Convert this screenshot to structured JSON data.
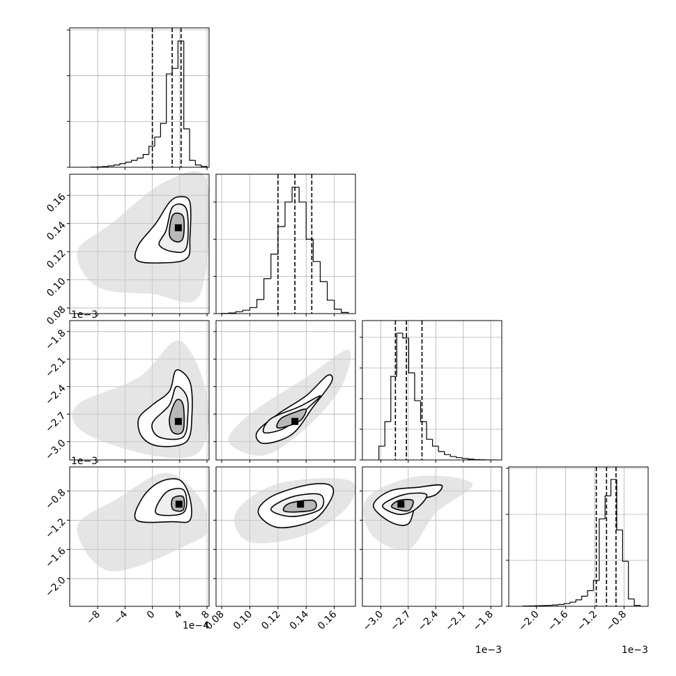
{
  "chart_data": {
    "type": "corner",
    "grid": true,
    "color": "#000000",
    "params": [
      {
        "xlim": [
          -12.1,
          8.3
        ],
        "xticks": [
          {
            "value": -8,
            "label": "−8"
          },
          {
            "value": -4,
            "label": "−4"
          },
          0,
          4,
          8
        ],
        "offset": "1e−4",
        "hist": {
          "bins": [
            -9,
            -8.15,
            -7.3,
            -6.45,
            -5.6,
            -4.75,
            -3.9,
            -3.05,
            -2.2,
            -1.35,
            -0.5,
            0.35,
            1.2,
            2.05,
            2.9,
            3.75,
            4.6,
            5.45,
            6.3,
            7.15,
            8.0
          ],
          "counts": [
            2,
            4,
            8,
            15,
            25,
            40,
            55,
            75,
            100,
            140,
            230,
            330,
            480,
            1020,
            1080,
            1379,
            420,
            75,
            25,
            8
          ],
          "ylim": [
            0,
            1523
          ],
          "yticks": [
            0,
            500,
            1000,
            1500
          ],
          "quantiles": [
            0,
            2.9,
            4.2
          ]
        }
      },
      {
        "xlim": [
          0.076,
          0.175
        ],
        "xticks": [
          0.08,
          {
            "value": 0.1,
            "label": "0.10"
          },
          0.12,
          0.14,
          0.16
        ],
        "hist": {
          "bins": [
            0.08,
            0.085,
            0.09,
            0.095,
            0.1,
            0.105,
            0.11,
            0.115,
            0.12,
            0.125,
            0.13,
            0.135,
            0.14,
            0.145,
            0.15,
            0.155,
            0.16,
            0.165,
            0.17
          ],
          "counts": [
            3,
            8,
            25,
            45,
            80,
            190,
            470,
            800,
            1170,
            1500,
            1700,
            1500,
            1000,
            700,
            430,
            180,
            60,
            15
          ],
          "ylim": [
            0,
            1874
          ],
          "yticks": [
            0,
            500,
            1000,
            1500
          ],
          "quantiles": [
            0.12,
            0.132,
            0.144
          ]
        }
      },
      {
        "xlim": [
          -3.2,
          -1.68
        ],
        "xticks": [
          {
            "value": -3.0,
            "label": "−3.0"
          },
          {
            "value": -2.7,
            "label": "−2.7"
          },
          {
            "value": -2.4,
            "label": "−2.4"
          },
          {
            "value": -2.1,
            "label": "−2.1"
          },
          {
            "value": -1.8,
            "label": "−1.8"
          }
        ],
        "offset": "1e−3",
        "hist": {
          "bins": [
            -3.02,
            -2.955,
            -2.89,
            -2.825,
            -2.76,
            -2.695,
            -2.63,
            -2.565,
            -2.5,
            -2.435,
            -2.37,
            -2.305,
            -2.24,
            -2.175,
            -2.11,
            -2.045,
            -1.98,
            -1.915,
            -1.85,
            -1.785,
            -1.72
          ],
          "counts": [
            180,
            500,
            1090,
            1654,
            1590,
            1136,
            773,
            500,
            270,
            180,
            110,
            70,
            45,
            30,
            20,
            10,
            5,
            3,
            0,
            0
          ],
          "ylim": [
            0,
            1818
          ],
          "yticks": [
            0,
            400,
            800,
            1200,
            1600
          ],
          "quantiles": [
            -2.84,
            -2.72,
            -2.55
          ]
        }
      },
      {
        "xlim": [
          -2.38,
          -0.47
        ],
        "xticks": [
          {
            "value": -2.0,
            "label": "−2.0"
          },
          {
            "value": -1.6,
            "label": "−1.6"
          },
          {
            "value": -1.2,
            "label": "−1.2"
          },
          {
            "value": -0.8,
            "label": "−0.8"
          }
        ],
        "offset": "1e−3",
        "hist": {
          "bins": [
            -2.18,
            -2.1,
            -2.02,
            -1.94,
            -1.86,
            -1.78,
            -1.7,
            -1.62,
            -1.54,
            -1.46,
            -1.38,
            -1.3,
            -1.22,
            -1.14,
            -1.06,
            -0.98,
            -0.9,
            -0.82,
            -0.74,
            -0.66,
            -0.58
          ],
          "counts": [
            3,
            4,
            6,
            8,
            10,
            14,
            20,
            30,
            45,
            70,
            110,
            170,
            280,
            950,
            1200,
            1379,
            830,
            490,
            80,
            10
          ],
          "ylim": [
            0,
            1515
          ],
          "yticks": [
            0,
            500,
            1000,
            1500
          ],
          "quantiles": [
            -1.18,
            -1.04,
            -0.91
          ]
        }
      }
    ],
    "pairs": [
      {
        "peak": {
          "x": 3.8,
          "y": 0.137
        },
        "cloud": {
          "x": [
            8,
            2,
            -6,
            -11,
            -8,
            0,
            7
          ],
          "y": [
            0.17,
            0.17,
            0.14,
            0.12,
            0.095,
            0.09,
            0.09
          ]
        },
        "contours": [
          {
            "x": [
              5.5,
              4,
              2.5,
              0.5,
              -2.0,
              -2.3,
              1,
              5,
              5.5
            ],
            "y": [
              0.155,
              0.159,
              0.155,
              0.14,
              0.125,
              0.114,
              0.112,
              0.115,
              0.13
            ]
          },
          {
            "x": [
              5,
              3,
              2,
              1,
              3,
              5
            ],
            "y": [
              0.15,
              0.152,
              0.135,
              0.125,
              0.12,
              0.123
            ]
          },
          {
            "x": [
              4.5,
              3,
              2.5,
              3.5,
              4.5
            ],
            "y": [
              0.145,
              0.146,
              0.132,
              0.127,
              0.13
            ]
          }
        ]
      },
      {
        "peak": {
          "x": 3.8,
          "y": -2.78
        },
        "cloud": {
          "x": [
            8,
            4,
            -2,
            -11,
            -10,
            0,
            7
          ],
          "y": [
            -2.5,
            -1.9,
            -2.3,
            -2.6,
            -2.9,
            -3.15,
            -3.1
          ]
        },
        "contours": [
          {
            "x": [
              5.5,
              3.5,
              2.5,
              0,
              -2,
              -1.5,
              1,
              5,
              5.8
            ],
            "y": [
              -2.35,
              -2.22,
              -2.45,
              -2.6,
              -2.75,
              -2.95,
              -3.05,
              -3.0,
              -2.7
            ]
          },
          {
            "x": [
              5,
              3.5,
              2.5,
              0,
              1,
              4.5,
              5.2
            ],
            "y": [
              -2.5,
              -2.4,
              -2.6,
              -2.8,
              -2.95,
              -2.95,
              -2.7
            ]
          },
          {
            "x": [
              4.5,
              3.5,
              2.5,
              3,
              4.5
            ],
            "y": [
              -2.6,
              -2.55,
              -2.75,
              -2.9,
              -2.88
            ]
          }
        ]
      },
      {
        "peak": {
          "x": 0.132,
          "y": -2.78
        },
        "cloud": {
          "x": [
            0.17,
            0.165,
            0.14,
            0.11,
            0.085,
            0.1,
            0.14
          ],
          "y": [
            -2.0,
            -2.4,
            -2.85,
            -3.15,
            -3.0,
            -2.7,
            -2.3
          ]
        },
        "contours": [
          {
            "x": [
              0.155,
              0.158,
              0.145,
              0.13,
              0.11,
              0.105,
              0.12,
              0.14
            ],
            "y": [
              -2.28,
              -2.35,
              -2.62,
              -2.92,
              -3.02,
              -2.9,
              -2.7,
              -2.5
            ]
          },
          {
            "x": [
              0.15,
              0.14,
              0.125,
              0.11,
              0.115,
              0.135
            ],
            "y": [
              -2.5,
              -2.65,
              -2.85,
              -2.9,
              -2.75,
              -2.62
            ]
          },
          {
            "x": [
              0.14,
              0.135,
              0.12,
              0.122,
              0.132
            ],
            "y": [
              -2.65,
              -2.78,
              -2.85,
              -2.75,
              -2.68
            ]
          }
        ]
      },
      {
        "peak": {
          "x": 3.9,
          "y": -0.98
        },
        "cloud": {
          "x": [
            7,
            2,
            -5,
            -11,
            -6,
            6,
            8
          ],
          "y": [
            -0.9,
            -0.55,
            -0.9,
            -1.3,
            -1.9,
            -1.5,
            -1.3
          ]
        },
        "contours": [
          {
            "x": [
              4,
              1,
              -1.5,
              -2.3,
              3,
              5.5,
              5.5
            ],
            "y": [
              -0.65,
              -0.68,
              -0.9,
              -1.2,
              -1.22,
              -1.2,
              -0.9
            ]
          },
          {
            "x": [
              4.5,
              2,
              0.5,
              4,
              5
            ],
            "y": [
              -0.78,
              -0.82,
              -1.1,
              -1.12,
              -1.0
            ]
          },
          {
            "x": [
              4.5,
              3,
              3,
              4.5
            ],
            "y": [
              -0.88,
              -0.9,
              -1.05,
              -1.06
            ]
          }
        ]
      },
      {
        "peak": {
          "x": 0.136,
          "y": -0.98
        },
        "cloud": {
          "x": [
            0.17,
            0.12,
            0.09,
            0.1,
            0.14,
            0.17
          ],
          "y": [
            -0.65,
            -0.7,
            -1.1,
            -1.5,
            -1.4,
            -1.0
          ]
        },
        "contours": [
          {
            "x": [
              0.157,
              0.14,
              0.115,
              0.106,
              0.12,
              0.145,
              0.158
            ],
            "y": [
              -0.72,
              -0.72,
              -0.88,
              -1.1,
              -1.3,
              -1.2,
              -0.9
            ]
          },
          {
            "x": [
              0.15,
              0.13,
              0.115,
              0.13,
              0.15
            ],
            "y": [
              -0.85,
              -0.88,
              -1.05,
              -1.15,
              -1.05
            ]
          },
          {
            "x": [
              0.145,
              0.128,
              0.125,
              0.145
            ],
            "y": [
              -0.93,
              -0.97,
              -1.08,
              -1.06
            ]
          }
        ]
      },
      {
        "peak": {
          "x": -2.78,
          "y": -0.98
        },
        "cloud": {
          "x": [
            -2.0,
            -2.6,
            -3.15,
            -3.1,
            -2.7,
            -2.4
          ],
          "y": [
            -0.7,
            -0.6,
            -0.9,
            -1.4,
            -1.6,
            -1.1
          ]
        },
        "contours": [
          {
            "x": [
              -2.34,
              -2.6,
              -2.9,
              -3.08,
              -2.9,
              -2.7,
              -2.6,
              -2.4
            ],
            "y": [
              -0.72,
              -0.75,
              -0.8,
              -1.0,
              -1.22,
              -1.25,
              -0.95,
              -0.85
            ]
          },
          {
            "x": [
              -2.5,
              -2.75,
              -2.98,
              -2.8,
              -2.62
            ],
            "y": [
              -0.85,
              -0.85,
              -1.0,
              -1.12,
              -1.05
            ]
          },
          {
            "x": [
              -2.65,
              -2.8,
              -2.88,
              -2.7
            ],
            "y": [
              -0.93,
              -0.93,
              -1.02,
              -1.07
            ]
          }
        ]
      }
    ]
  }
}
